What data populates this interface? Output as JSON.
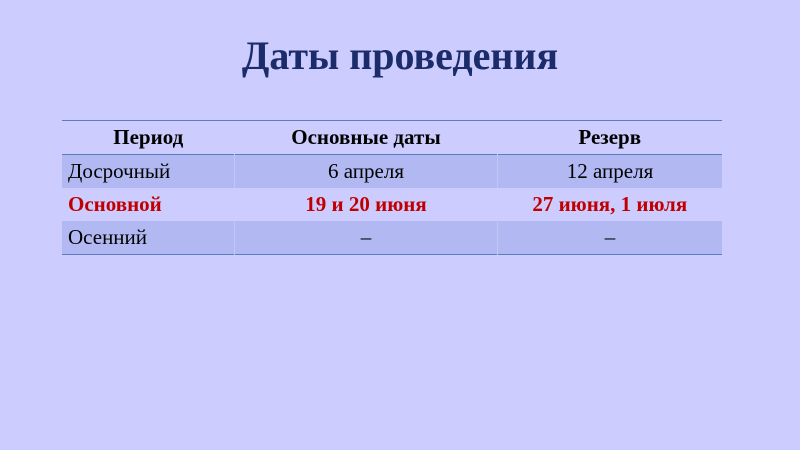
{
  "title": "Даты проведения",
  "table": {
    "headers": [
      "Период",
      "Основные даты",
      "Резерв"
    ],
    "rows": [
      {
        "cells": [
          "Досрочный",
          "6 апреля",
          "12 апреля"
        ],
        "highlight": false
      },
      {
        "cells": [
          "Основной",
          "19 и 20 июня",
          "27 июня, 1 июля"
        ],
        "highlight": true
      },
      {
        "cells": [
          "Осенний",
          "–",
          "–"
        ],
        "highlight": false
      }
    ]
  },
  "colors": {
    "background": "#ccccfe",
    "title": "#1c2c6a",
    "highlight": "#c00000",
    "row_shade": "#b2b8f2",
    "rule": "#5a7cc0"
  }
}
